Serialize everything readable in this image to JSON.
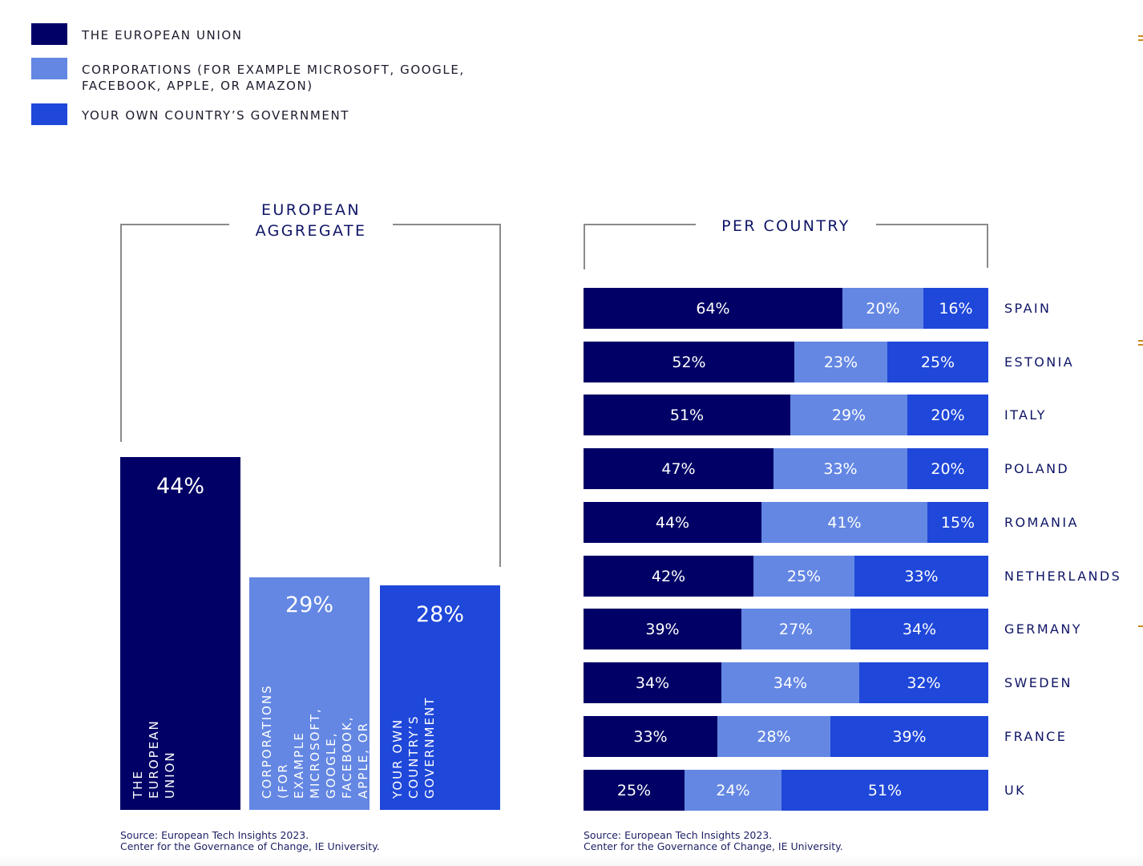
{
  "colors": {
    "eu": "#000066",
    "corporations": "#6487E3",
    "government": "#1F47D9",
    "heading": "#0f1566",
    "bracket": "#8a8a8a",
    "accent_tick": "#c98a1e"
  },
  "legend": [
    {
      "key": "eu",
      "label": "THE EUROPEAN UNION"
    },
    {
      "key": "corporations",
      "label": "CORPORATIONS (FOR EXAMPLE MICROSOFT, GOOGLE, FACEBOOK, APPLE, OR AMAZON)"
    },
    {
      "key": "government",
      "label": "YOUR OWN COUNTRY’S GOVERNMENT"
    }
  ],
  "aggregate": {
    "title": "EUROPEAN\nAGGREGATE",
    "title_line1": "EUROPEAN",
    "title_line2": "AGGREGATE",
    "bars": [
      {
        "key": "eu",
        "value_label": "44%",
        "bar_label": "THE EUROPEAN UNION"
      },
      {
        "key": "corporations",
        "value_label": "29%",
        "bar_label": "CORPORATIONS (FOR\nEXAMPLE MICROSOFT,\nGOOGLE, FACEBOOK,\nAPPLE, OR AMAZON)"
      },
      {
        "key": "government",
        "value_label": "28%",
        "bar_label": "YOUR OWN\nCOUNTRY’S\nGOVERNMENT"
      }
    ],
    "source_line1": "Source: European Tech Insights 2023.",
    "source_line2": "Center for the Governance of Change, IE University."
  },
  "per_country": {
    "title": "PER COUNTRY",
    "source_line1": "Source: European Tech Insights 2023.",
    "source_line2": "Center for the Governance of Change, IE University."
  },
  "chart_data": [
    {
      "type": "bar",
      "title": "EUROPEAN AGGREGATE",
      "categories": [
        "THE EUROPEAN UNION",
        "CORPORATIONS (FOR EXAMPLE MICROSOFT, GOOGLE, FACEBOOK, APPLE, OR AMAZON)",
        "YOUR OWN COUNTRY’S GOVERNMENT"
      ],
      "values": [
        44,
        29,
        28
      ],
      "unit": "%",
      "ylim": [
        0,
        44
      ],
      "grid": false,
      "xlabel": "",
      "ylabel": ""
    },
    {
      "type": "bar",
      "stacked": true,
      "orientation": "horizontal",
      "title": "PER COUNTRY",
      "categories": [
        "SPAIN",
        "ESTONIA",
        "ITALY",
        "POLAND",
        "ROMANIA",
        "NETHERLANDS",
        "GERMANY",
        "SWEDEN",
        "FRANCE",
        "UK"
      ],
      "series": [
        {
          "name": "THE EUROPEAN UNION",
          "key": "eu",
          "values": [
            64,
            52,
            51,
            47,
            44,
            42,
            39,
            34,
            33,
            25
          ]
        },
        {
          "name": "CORPORATIONS (FOR EXAMPLE MICROSOFT, GOOGLE, FACEBOOK, APPLE, OR AMAZON)",
          "key": "corporations",
          "values": [
            20,
            23,
            29,
            33,
            41,
            25,
            27,
            34,
            28,
            24
          ]
        },
        {
          "name": "YOUR OWN COUNTRY’S GOVERNMENT",
          "key": "government",
          "values": [
            16,
            25,
            20,
            20,
            15,
            33,
            34,
            32,
            39,
            51
          ]
        }
      ],
      "unit": "%",
      "xlim": [
        0,
        100
      ],
      "grid": false,
      "legend": "top-left"
    }
  ]
}
